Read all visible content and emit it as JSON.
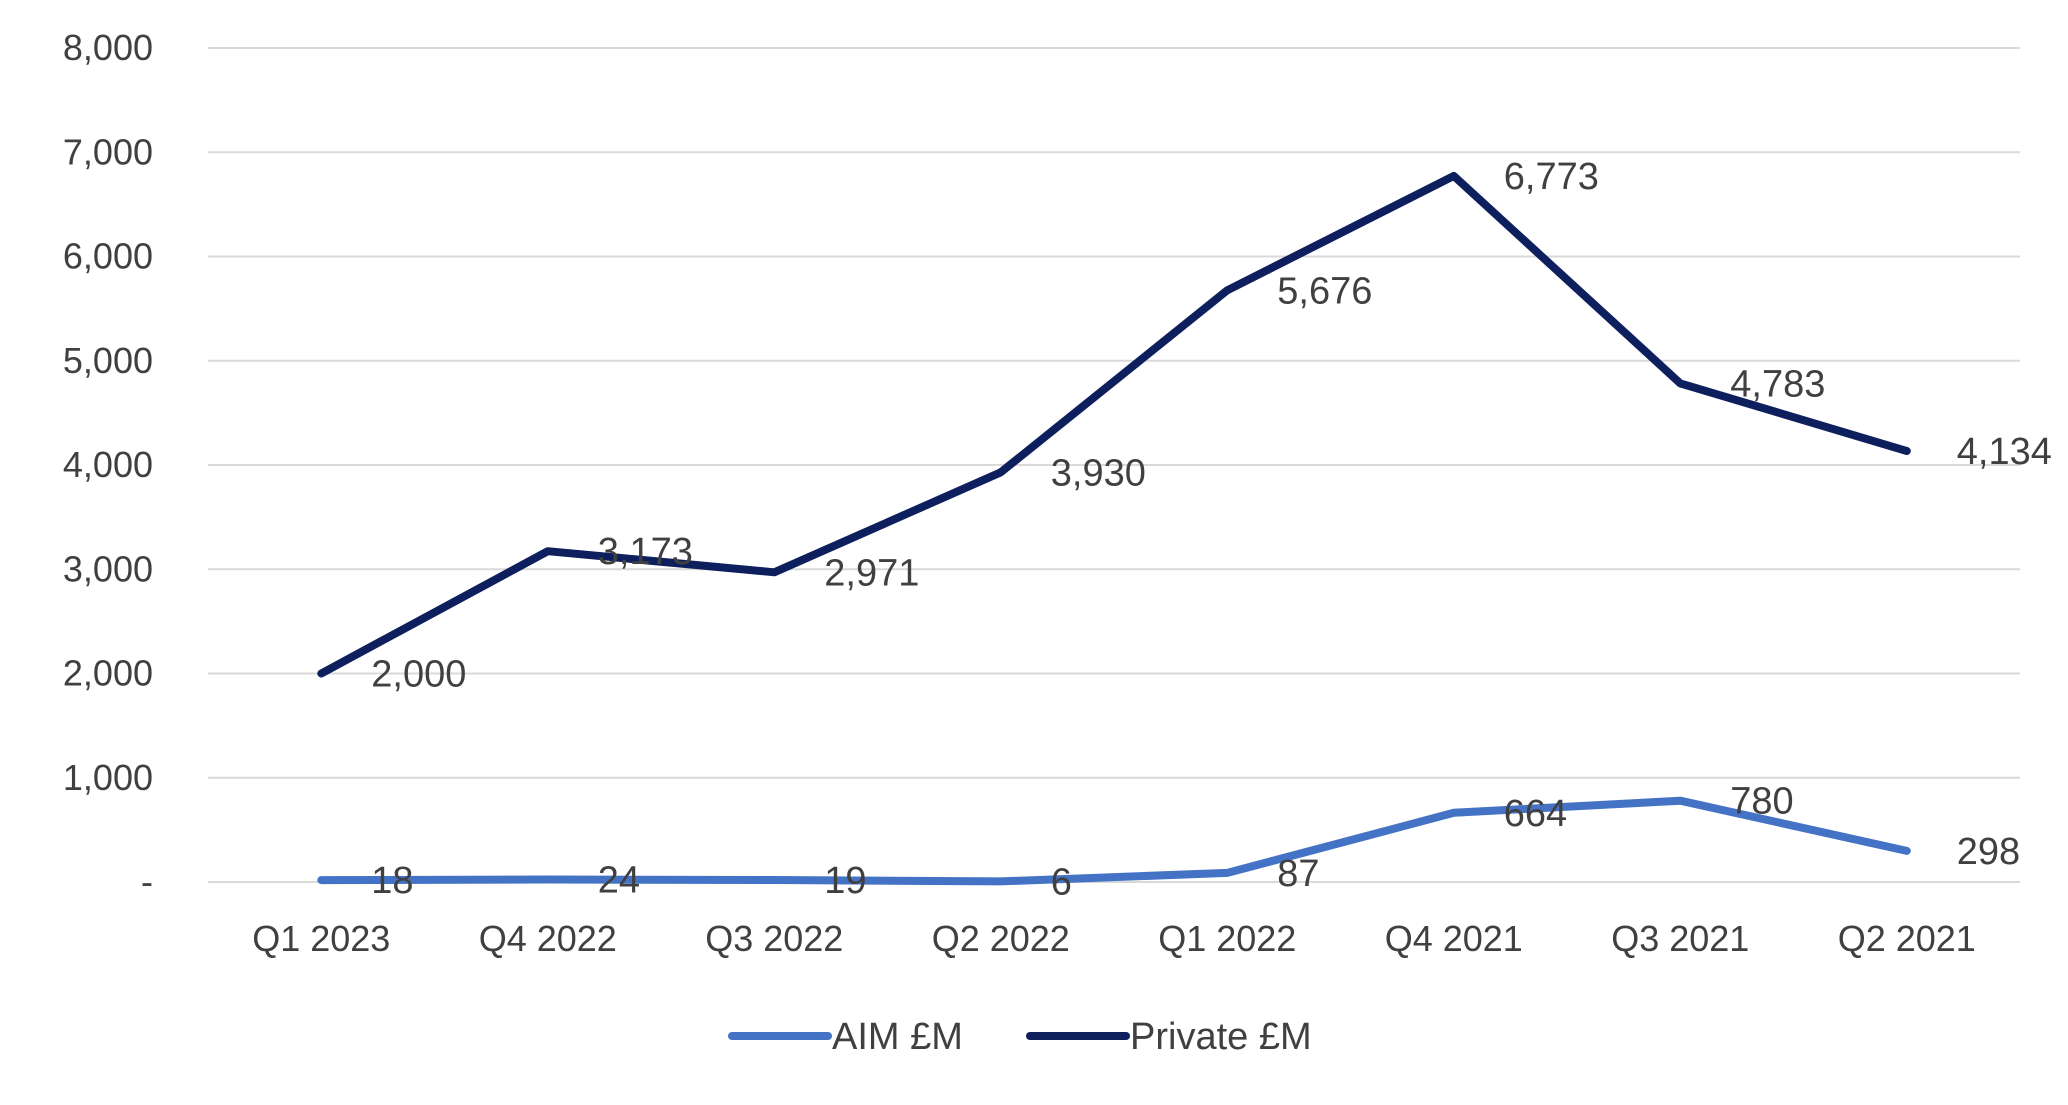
{
  "chart_data": {
    "type": "line",
    "title": "",
    "xlabel": "",
    "ylabel": "",
    "categories": [
      "Q1 2023",
      "Q4 2022",
      "Q3 2022",
      "Q2 2022",
      "Q1 2022",
      "Q4 2021",
      "Q3 2021",
      "Q2 2021"
    ],
    "ylim": [
      0,
      8000
    ],
    "y_ticks": [
      0,
      1000,
      2000,
      3000,
      4000,
      5000,
      6000,
      7000,
      8000
    ],
    "y_tick_labels": [
      "-",
      "1,000",
      "2,000",
      "3,000",
      "4,000",
      "5,000",
      "6,000",
      "7,000",
      "8,000"
    ],
    "grid": "horizontal",
    "legend_position": "bottom",
    "series": [
      {
        "name": "AIM £M",
        "color": "#4472C4",
        "values": [
          18,
          24,
          19,
          6,
          87,
          664,
          780,
          298
        ],
        "data_labels": [
          "18",
          "24",
          "19",
          "6",
          "87",
          "664",
          "780",
          "298"
        ]
      },
      {
        "name": "Private £M",
        "color": "#0D1F5C",
        "values": [
          2000,
          3173,
          2971,
          3930,
          5676,
          6773,
          4783,
          4134
        ],
        "data_labels": [
          "2,000",
          "3,173",
          "2,971",
          "3,930",
          "5,676",
          "6,773",
          "4,783",
          "4,134"
        ]
      }
    ]
  }
}
